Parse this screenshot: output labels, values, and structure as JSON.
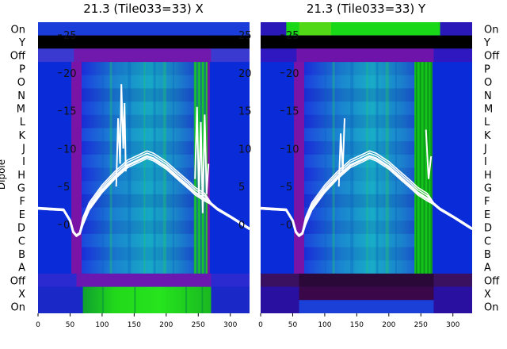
{
  "chart_data": {
    "type": "heatmap",
    "panels": [
      {
        "title": "21.3 (Tile033=33) X",
        "polarization": "X"
      },
      {
        "title": "21.3 (Tile033=33) Y",
        "polarization": "Y"
      }
    ],
    "ylabel": "Dipole",
    "x_ticks": [
      0,
      50,
      100,
      150,
      200,
      250,
      300
    ],
    "xlim": [
      0,
      330
    ],
    "row_labels_left": [
      "On",
      "Y",
      "Off",
      "P",
      "O",
      "N",
      "M",
      "L",
      "K",
      "J",
      "I",
      "H",
      "G",
      "F",
      "E",
      "D",
      "C",
      "B",
      "A",
      "Off",
      "X",
      "On"
    ],
    "row_labels_right": [
      "On",
      "Y",
      "Off",
      "P",
      "O",
      "N",
      "M",
      "L",
      "K",
      "J",
      "I",
      "H",
      "G",
      "F",
      "E",
      "D",
      "C",
      "B",
      "A",
      "Off",
      "X",
      "On"
    ],
    "overlay_ticks": [
      25,
      20,
      15,
      10,
      5,
      0
    ],
    "overlay_ylim": [
      -3,
      28
    ],
    "overlay_curves": {
      "x": [
        0,
        20,
        40,
        50,
        55,
        60,
        65,
        70,
        80,
        100,
        120,
        140,
        160,
        170,
        180,
        200,
        220,
        235,
        245,
        260,
        270,
        280,
        300,
        315,
        330
      ],
      "y": [
        2.1,
        2.0,
        1.9,
        0.5,
        -1.0,
        -1.5,
        -1.2,
        0.2,
        2.2,
        4.5,
        6.3,
        7.8,
        8.6,
        9.0,
        8.7,
        7.6,
        6.1,
        5.0,
        4.2,
        3.4,
        2.7,
        2.0,
        1.0,
        0.2,
        -0.6
      ]
    },
    "spikes_x": {
      "x": [
        122,
        125,
        128,
        130,
        133,
        135,
        137
      ],
      "y": [
        5.0,
        14.0,
        8.0,
        18.5,
        10.0,
        16.0,
        7.0
      ]
    },
    "spikes_x_right": {
      "x": [
        245,
        248,
        251,
        254,
        257,
        260,
        263,
        266
      ],
      "y": [
        6.0,
        15.5,
        3.5,
        13.5,
        1.5,
        14.5,
        4.0,
        8.0
      ]
    },
    "spikes_y": {
      "x": [
        122,
        125,
        128,
        131
      ],
      "y": [
        5.0,
        12.0,
        7.0,
        14.0
      ]
    },
    "spikes_y_right": {
      "x": [
        258,
        262,
        266
      ],
      "y": [
        12.5,
        6.0,
        9.0
      ]
    },
    "colors": {
      "background_blue": "#0a2bd8",
      "purple": "#7a14a6",
      "cyan": "#1aa8c8",
      "green": "#18d818",
      "black": "#000000",
      "curve": "#ffffff"
    }
  }
}
